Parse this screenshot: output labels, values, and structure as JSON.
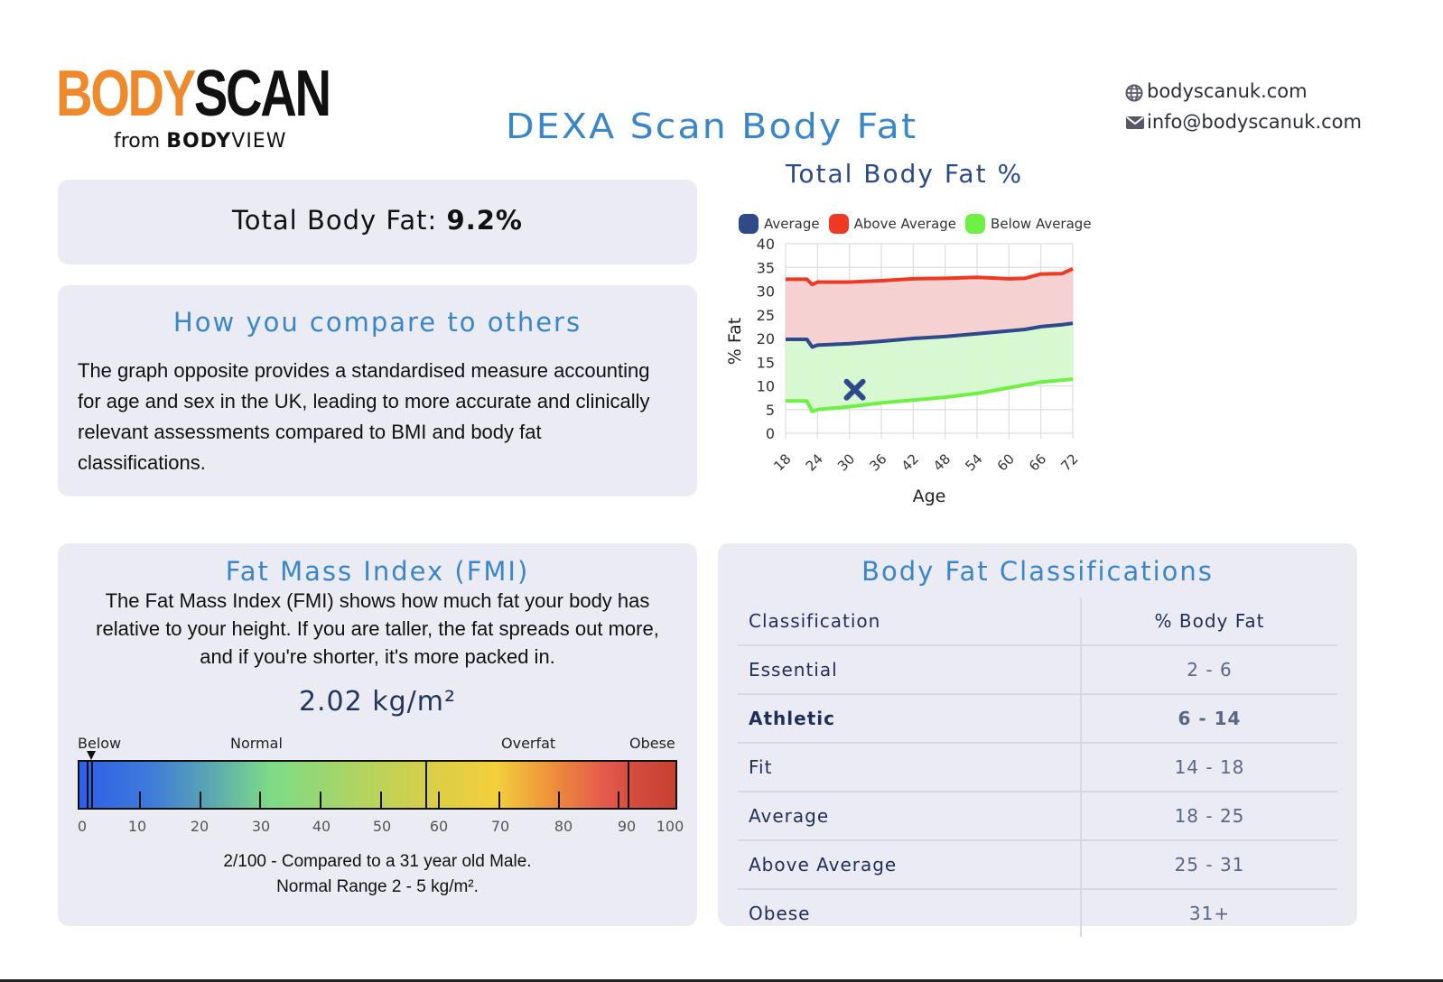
{
  "brand": {
    "logo_part1": "BODY",
    "logo_part2": "SCAN",
    "sub_from": "from",
    "sub_bold": "BODY",
    "sub_thin": "VIEW",
    "orange": "#ef8a2c"
  },
  "header": {
    "title": "DEXA Scan Body Fat",
    "website": "bodyscanuk.com",
    "email": "info@bodyscanuk.com"
  },
  "total_body_fat": {
    "label": "Total Body Fat:",
    "value": "9.2%"
  },
  "compare": {
    "title": "How you compare to others",
    "body": "The graph opposite provides a standardised measure accounting for age and sex in the UK, leading to more accurate and clinically relevant assessments compared to BMI and body fat classifications."
  },
  "chart_data": {
    "type": "line",
    "title": "Total Body Fat %",
    "xlabel": "Age",
    "ylabel": "% Fat",
    "ylim": [
      0,
      40
    ],
    "xlim": [
      18,
      72
    ],
    "yticks": [
      0,
      5,
      10,
      15,
      20,
      25,
      30,
      35,
      40
    ],
    "xticks": [
      18,
      24,
      30,
      36,
      42,
      48,
      54,
      60,
      66,
      72
    ],
    "grid": true,
    "legend_position": "top",
    "x": [
      18,
      22,
      23,
      24,
      30,
      36,
      42,
      48,
      54,
      60,
      63,
      66,
      70,
      72
    ],
    "series": [
      {
        "name": "Average",
        "color": "#2e4a8a",
        "values": [
          19.8,
          19.8,
          18.2,
          18.6,
          18.9,
          19.4,
          20.0,
          20.4,
          21.0,
          21.6,
          21.9,
          22.5,
          22.9,
          23.2
        ]
      },
      {
        "name": "Above Average",
        "color": "#ee3a24",
        "values": [
          32.5,
          32.5,
          31.4,
          31.9,
          31.9,
          32.2,
          32.6,
          32.7,
          32.9,
          32.6,
          32.7,
          33.6,
          33.7,
          34.7
        ]
      },
      {
        "name": "Below Average",
        "color": "#6ef045",
        "values": [
          6.8,
          6.8,
          4.6,
          5.0,
          5.6,
          6.4,
          7.0,
          7.6,
          8.4,
          9.6,
          10.2,
          10.8,
          11.2,
          11.4
        ]
      }
    ],
    "fills": [
      {
        "between": [
          "Average",
          "Above Average"
        ],
        "color": "#f6cfcf"
      },
      {
        "between": [
          "Below Average",
          "Average"
        ],
        "color": "#d6f8cf"
      }
    ],
    "marker": {
      "label": "You",
      "x": 31,
      "y": 9.2,
      "shape": "x",
      "color": "#2e4a8a"
    }
  },
  "fmi": {
    "title": "Fat Mass Index (FMI)",
    "description": "The Fat Mass Index (FMI) shows how much fat your body has relative to your height. If you are taller, the fat spreads out more, and if you're shorter, it's more packed in.",
    "value": "2.02 kg/m²",
    "scale_labels": [
      "Below",
      "Normal",
      "Overfat",
      "Obese"
    ],
    "scale_ticks": [
      "0",
      "10",
      "20",
      "30",
      "40",
      "50",
      "60",
      "70",
      "80",
      "90",
      "100"
    ],
    "percentile": 2,
    "footer_line1": "2/100 - Compared to a 31 year old Male.",
    "footer_line2": "Normal Range 2 - 5 kg/m²."
  },
  "classifications": {
    "title": "Body Fat Classifications",
    "headers": [
      "Classification",
      "% Body Fat"
    ],
    "rows": [
      {
        "name": "Essential",
        "range": "2 - 6"
      },
      {
        "name": "Athletic",
        "range": "6 - 14",
        "highlight": true
      },
      {
        "name": "Fit",
        "range": "14 - 18"
      },
      {
        "name": "Average",
        "range": "18 - 25"
      },
      {
        "name": "Above Average",
        "range": "25 - 31"
      },
      {
        "name": "Obese",
        "range": "31+"
      }
    ]
  }
}
